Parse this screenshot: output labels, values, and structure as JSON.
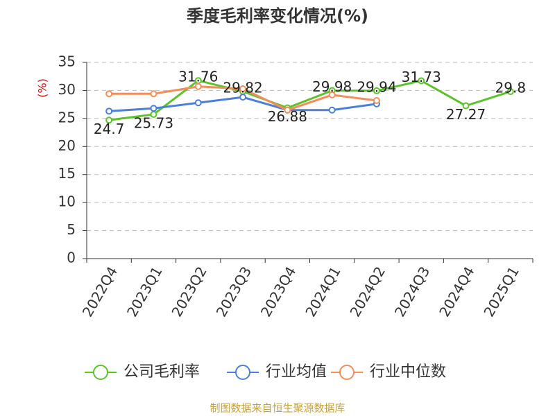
{
  "chart_data": {
    "type": "line",
    "title": "季度毛利率变化情况(%)",
    "y_label": "(%)",
    "categories": [
      "2022Q4",
      "2023Q1",
      "2023Q2",
      "2023Q3",
      "2023Q4",
      "2024Q1",
      "2024Q2",
      "2024Q3",
      "2024Q4",
      "2025Q1"
    ],
    "series": [
      {
        "name": "公司毛利率",
        "color": "#5cc22a",
        "values": [
          24.7,
          25.73,
          31.76,
          29.82,
          26.88,
          29.98,
          29.94,
          31.73,
          27.27,
          29.8
        ],
        "data_labels": true
      },
      {
        "name": "行业均值",
        "color": "#4a7fdb",
        "values": [
          26.3,
          26.8,
          27.8,
          28.8,
          26.5,
          26.5,
          27.6,
          null,
          null,
          null
        ]
      },
      {
        "name": "行业中位数",
        "color": "#f58d5a",
        "values": [
          29.4,
          29.4,
          30.7,
          30.3,
          26.5,
          29.2,
          28.2,
          null,
          null,
          null
        ]
      }
    ],
    "ylim": [
      0,
      35
    ],
    "yticks": [
      0,
      5,
      10,
      15,
      20,
      25,
      30,
      35
    ],
    "grid": true,
    "source": "制图数据来自恒生聚源数据库"
  }
}
